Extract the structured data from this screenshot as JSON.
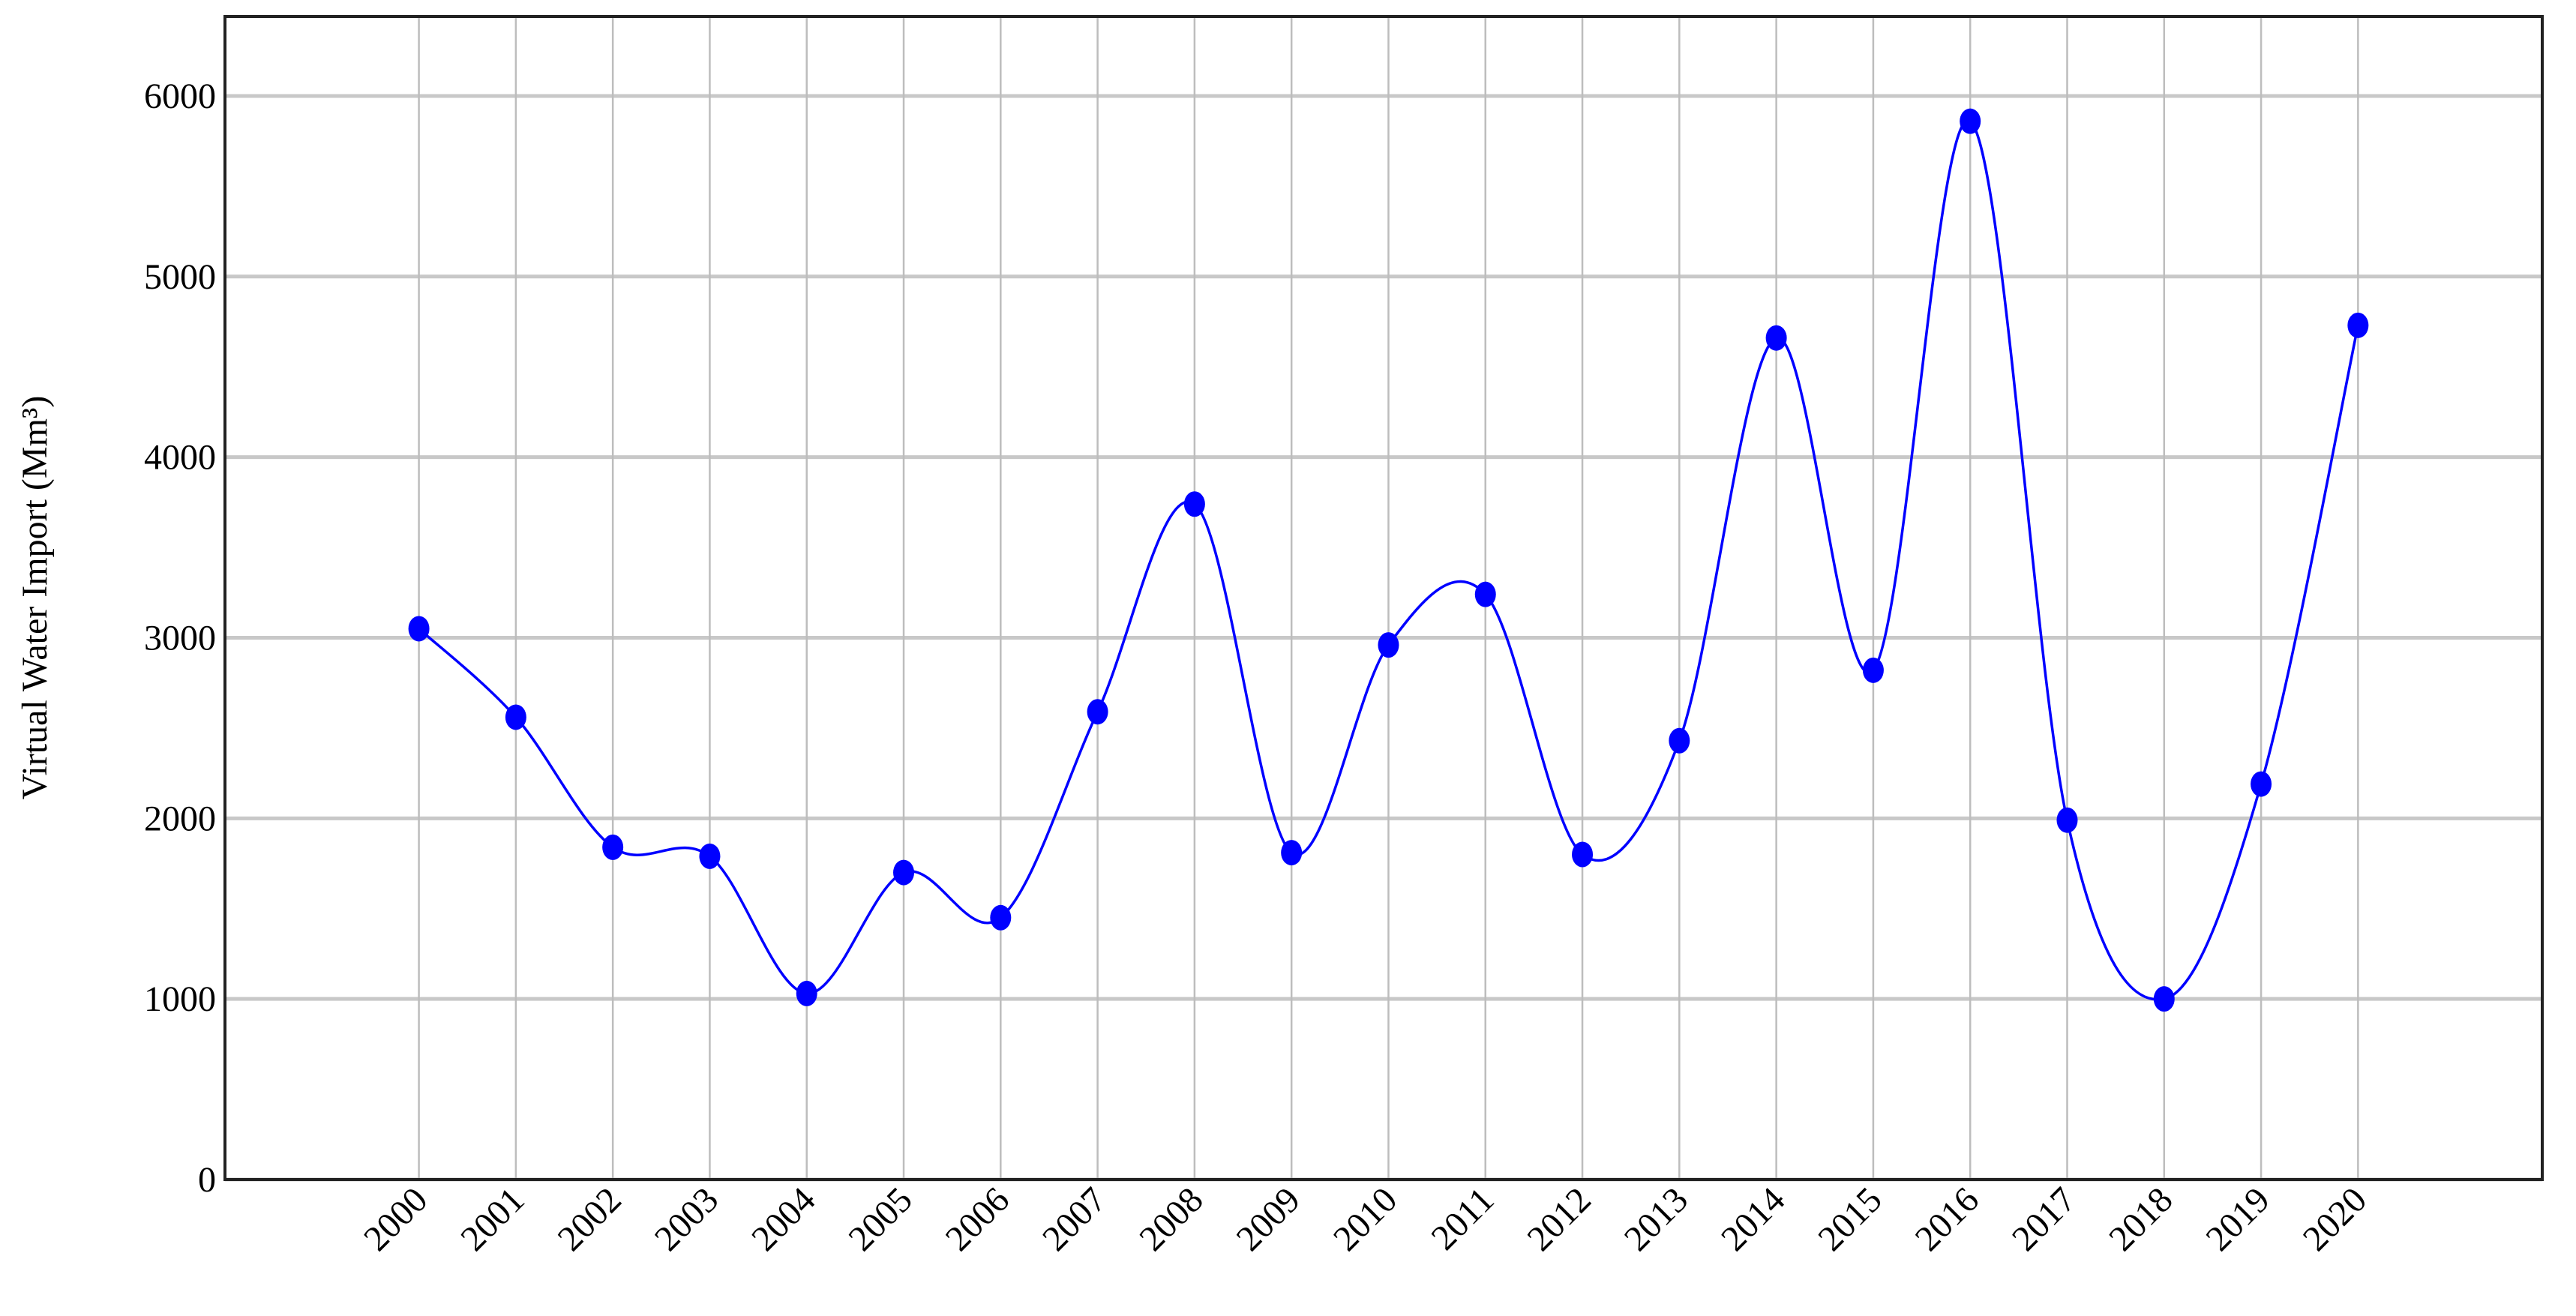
{
  "chart_data": {
    "type": "line",
    "y_label": "Virtual Water Import (Mm³)",
    "x": [
      2000,
      2001,
      2002,
      2003,
      2004,
      2005,
      2006,
      2007,
      2008,
      2009,
      2010,
      2011,
      2012,
      2013,
      2014,
      2015,
      2016,
      2017,
      2018,
      2019,
      2020
    ],
    "series": [
      {
        "color": "#0000ff",
        "values": [
          3050,
          2560,
          1840,
          1790,
          1030,
          1700,
          1450,
          2590,
          3740,
          1810,
          2960,
          3240,
          1800,
          2430,
          4660,
          2820,
          5860,
          1990,
          1000,
          2190,
          4730
        ]
      }
    ],
    "xlim": [
      1998,
      2021.9
    ],
    "xticks": [
      2000,
      2001,
      2002,
      2003,
      2004,
      2005,
      2006,
      2007,
      2008,
      2009,
      2010,
      2011,
      2012,
      2013,
      2014,
      2015,
      2016,
      2017,
      2018,
      2019,
      2020
    ],
    "ylim": [
      0,
      6440
    ],
    "yticks": [
      0,
      1000,
      2000,
      3000,
      4000,
      5000,
      6000
    ],
    "grid": true,
    "smooth": true
  }
}
